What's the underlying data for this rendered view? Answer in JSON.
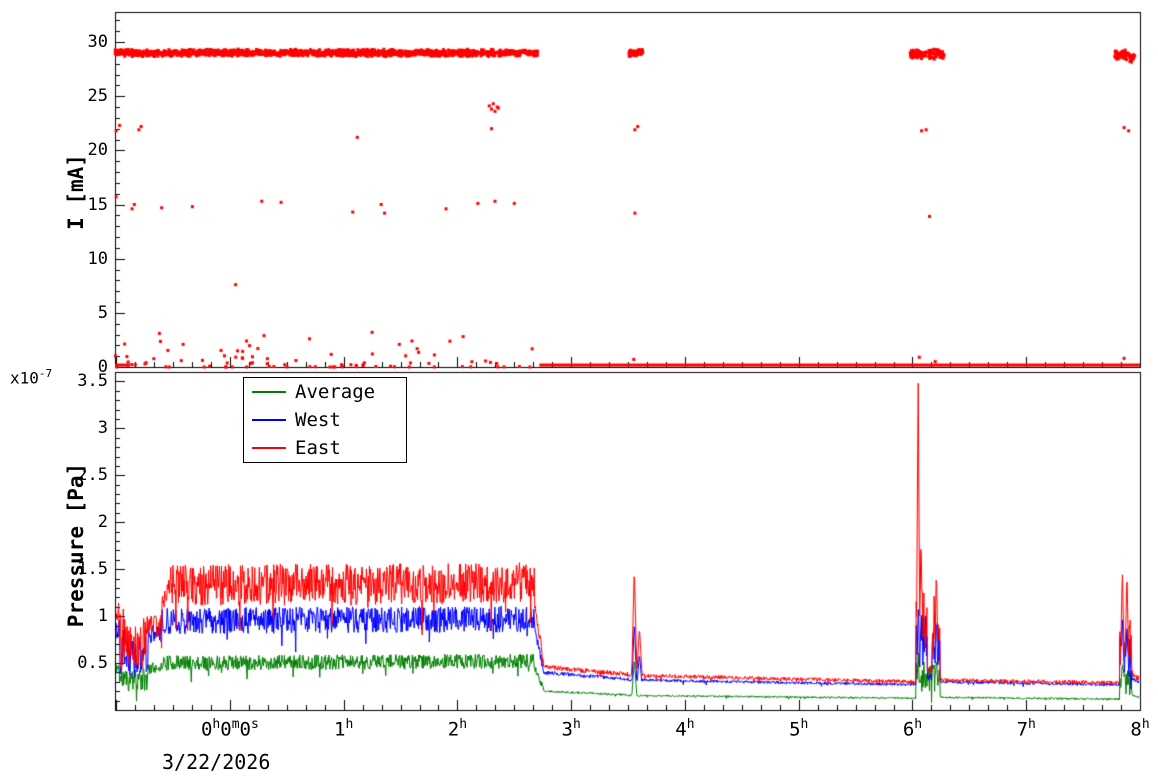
{
  "figure": {
    "background": "#ffffff",
    "frame_color": "#000000"
  },
  "x_axis": {
    "date_label": "3/22/2026",
    "ticks": [
      {
        "v": 0,
        "parts": [
          [
            "0",
            "h"
          ],
          [
            "0",
            "m"
          ],
          [
            "0",
            "s"
          ]
        ]
      },
      {
        "v": 1,
        "parts": [
          [
            "1",
            "h"
          ]
        ]
      },
      {
        "v": 2,
        "parts": [
          [
            "2",
            "h"
          ]
        ]
      },
      {
        "v": 3,
        "parts": [
          [
            "3",
            "h"
          ]
        ]
      },
      {
        "v": 4,
        "parts": [
          [
            "4",
            "h"
          ]
        ]
      },
      {
        "v": 5,
        "parts": [
          [
            "5",
            "h"
          ]
        ]
      },
      {
        "v": 6,
        "parts": [
          [
            "6",
            "h"
          ]
        ]
      },
      {
        "v": 7,
        "parts": [
          [
            "7",
            "h"
          ]
        ]
      },
      {
        "v": 8,
        "parts": [
          [
            "8",
            "h"
          ]
        ]
      }
    ]
  },
  "chart_data": [
    {
      "type": "scatter",
      "title": "",
      "ylabel": "I [mA]",
      "marker_color": "#ff0000",
      "xlim": [
        -1.01,
        8.0
      ],
      "ylim": [
        0,
        32.77
      ],
      "yticks": [
        {
          "v": 0,
          "label": "0"
        },
        {
          "v": 5,
          "label": "5"
        },
        {
          "v": 10,
          "label": "10"
        },
        {
          "v": 15,
          "label": "15"
        },
        {
          "v": 20,
          "label": "20"
        },
        {
          "v": 25,
          "label": "25"
        },
        {
          "v": 30,
          "label": "30"
        }
      ],
      "bands": [
        {
          "x0": -1.01,
          "x1": 2.72,
          "y": 29.0,
          "jitter": 0.35,
          "count": 1500
        },
        {
          "x0": 3.51,
          "x1": 3.63,
          "y": 29.0,
          "jitter": 0.35,
          "count": 50
        },
        {
          "x0": 5.98,
          "x1": 6.12,
          "y": 28.9,
          "jitter": 0.5,
          "count": 65
        },
        {
          "x0": 6.14,
          "x1": 6.28,
          "y": 28.9,
          "jitter": 0.5,
          "count": 55
        },
        {
          "x0": 7.78,
          "x1": 7.88,
          "y": 28.8,
          "jitter": 0.5,
          "count": 45
        },
        {
          "x0": 7.88,
          "x1": 7.96,
          "y": 28.6,
          "jitter": 0.6,
          "count": 25
        }
      ],
      "low_scatter": {
        "x0": -1.01,
        "x1": 2.72,
        "ymax": 2.4,
        "count": 85,
        "power": 3
      },
      "zero_line": {
        "y": 0.18,
        "segments": [
          [
            -1.01,
            -0.88
          ],
          [
            2.72,
            8.0
          ]
        ]
      },
      "strays": [
        [
          -1.0,
          21.8
        ],
        [
          -0.97,
          22.3
        ],
        [
          -0.8,
          21.9
        ],
        [
          -0.78,
          22.2
        ],
        [
          2.3,
          22.0
        ],
        [
          3.56,
          21.9
        ],
        [
          3.585,
          22.2
        ],
        [
          6.08,
          21.8
        ],
        [
          6.12,
          21.9
        ],
        [
          7.86,
          22.1
        ],
        [
          7.9,
          21.8
        ],
        [
          2.28,
          24.1
        ],
        [
          2.3,
          23.8
        ],
        [
          2.315,
          24.3
        ],
        [
          2.33,
          23.6
        ],
        [
          2.35,
          24.0
        ],
        [
          2.36,
          23.9
        ],
        [
          1.12,
          21.2
        ],
        [
          -1.0,
          15.7
        ],
        [
          -0.86,
          14.6
        ],
        [
          -0.84,
          15.0
        ],
        [
          -0.6,
          14.7
        ],
        [
          -0.33,
          14.8
        ],
        [
          0.28,
          15.3
        ],
        [
          0.45,
          15.2
        ],
        [
          1.08,
          14.3
        ],
        [
          1.33,
          15.0
        ],
        [
          1.36,
          14.2
        ],
        [
          1.9,
          14.6
        ],
        [
          2.18,
          15.1
        ],
        [
          2.33,
          15.3
        ],
        [
          2.5,
          15.1
        ],
        [
          3.56,
          14.2
        ],
        [
          6.15,
          13.9
        ],
        [
          0.05,
          7.6
        ],
        [
          -0.62,
          3.1
        ],
        [
          0.3,
          2.9
        ],
        [
          1.25,
          3.2
        ],
        [
          0.7,
          2.6
        ],
        [
          1.6,
          2.4
        ],
        [
          2.05,
          2.8
        ],
        [
          3.55,
          0.7
        ],
        [
          6.06,
          0.9
        ],
        [
          6.2,
          0.5
        ],
        [
          7.86,
          0.8
        ]
      ]
    },
    {
      "type": "line",
      "title": "",
      "ylabel": "Pressure [Pa]",
      "y_multiplier": {
        "base": "x10",
        "exp": "-7"
      },
      "xlim": [
        -1.01,
        8.0
      ],
      "ylim": [
        0,
        3.6
      ],
      "yticks": [
        {
          "v": 0.5,
          "label": "0.5"
        },
        {
          "v": 1,
          "label": "1"
        },
        {
          "v": 1.5,
          "label": "1.5"
        },
        {
          "v": 2,
          "label": "2"
        },
        {
          "v": 2.5,
          "label": "2.5"
        },
        {
          "v": 3,
          "label": "3"
        },
        {
          "v": 3.5,
          "label": "3.5"
        }
      ],
      "legend": {
        "entries": [
          {
            "label": "Average",
            "color": "#008000"
          },
          {
            "label": "West",
            "color": "#0000ff"
          },
          {
            "label": "East",
            "color": "#ff0000"
          }
        ]
      },
      "series": [
        {
          "name": "Average",
          "color": "#008000",
          "segments": [
            [
              -1.01,
              -0.97,
              0.45,
              0.45,
              0.07
            ],
            [
              -0.97,
              -0.93,
              0.33,
              0.33,
              0.15
            ],
            [
              -0.93,
              -0.72,
              0.32,
              0.32,
              0.13
            ],
            [
              -0.72,
              -0.6,
              0.44,
              0.46,
              0.06
            ],
            [
              -0.6,
              2.68,
              0.5,
              0.52,
              0.08
            ],
            [
              2.68,
              2.76,
              0.45,
              0.22,
              0.03
            ],
            [
              2.76,
              3.5,
              0.2,
              0.16,
              0.012
            ],
            [
              3.5,
              6.03,
              0.155,
              0.125,
              0.01
            ],
            [
              6.03,
              6.24,
              0.35,
              0.35,
              0.18
            ],
            [
              6.24,
              7.82,
              0.135,
              0.115,
              0.01
            ],
            [
              7.82,
              7.93,
              0.3,
              0.3,
              0.14
            ],
            [
              7.93,
              8.0,
              0.16,
              0.14,
              0.012
            ]
          ],
          "spikes": [
            [
              3.555,
              0.55,
              0.03
            ],
            [
              6.05,
              0.62,
              0.018
            ],
            [
              6.21,
              0.55,
              0.022
            ],
            [
              7.845,
              0.5,
              0.025
            ]
          ]
        },
        {
          "name": "West",
          "color": "#0000ff",
          "segments": [
            [
              -1.01,
              -0.97,
              0.85,
              0.85,
              0.12
            ],
            [
              -0.97,
              -0.93,
              0.6,
              0.6,
              0.28
            ],
            [
              -0.93,
              -0.72,
              0.55,
              0.55,
              0.22
            ],
            [
              -0.72,
              -0.6,
              0.8,
              0.82,
              0.1
            ],
            [
              -0.6,
              2.68,
              0.95,
              0.97,
              0.14
            ],
            [
              2.68,
              2.76,
              0.85,
              0.42,
              0.05
            ],
            [
              2.76,
              3.5,
              0.4,
              0.33,
              0.02
            ],
            [
              3.5,
              6.03,
              0.32,
              0.27,
              0.015
            ],
            [
              6.03,
              6.13,
              0.72,
              0.72,
              0.3
            ],
            [
              6.13,
              6.17,
              0.35,
              0.35,
              0.04
            ],
            [
              6.17,
              6.24,
              0.68,
              0.68,
              0.28
            ],
            [
              6.24,
              7.82,
              0.3,
              0.27,
              0.015
            ],
            [
              7.82,
              7.93,
              0.58,
              0.58,
              0.24
            ],
            [
              7.93,
              8.0,
              0.33,
              0.3,
              0.02
            ]
          ],
          "spikes": [
            [
              3.555,
              0.95,
              0.03
            ],
            [
              3.6,
              0.6,
              0.04
            ],
            [
              6.05,
              1.1,
              0.018
            ],
            [
              6.075,
              0.95,
              0.02
            ],
            [
              6.21,
              1.0,
              0.022
            ],
            [
              7.845,
              1.0,
              0.025
            ],
            [
              7.885,
              0.92,
              0.025
            ]
          ]
        },
        {
          "name": "East",
          "color": "#ff0000",
          "segments": [
            [
              -1.01,
              -0.97,
              1.05,
              1.05,
              0.18
            ],
            [
              -0.97,
              -0.93,
              0.75,
              0.75,
              0.35
            ],
            [
              -0.93,
              -0.72,
              0.72,
              0.72,
              0.3
            ],
            [
              -0.72,
              -0.6,
              0.88,
              0.9,
              0.12
            ],
            [
              -0.6,
              -0.52,
              1.1,
              1.38,
              0.1
            ],
            [
              -0.52,
              2.68,
              1.33,
              1.35,
              0.22
            ],
            [
              2.68,
              2.76,
              1.1,
              0.5,
              0.06
            ],
            [
              2.76,
              3.5,
              0.46,
              0.38,
              0.025
            ],
            [
              3.5,
              6.03,
              0.37,
              0.3,
              0.02
            ],
            [
              6.03,
              6.13,
              0.95,
              0.95,
              0.35
            ],
            [
              6.13,
              6.17,
              0.42,
              0.42,
              0.05
            ],
            [
              6.17,
              6.24,
              0.9,
              0.9,
              0.32
            ],
            [
              6.24,
              7.82,
              0.32,
              0.29,
              0.02
            ],
            [
              7.82,
              7.93,
              0.7,
              0.7,
              0.28
            ],
            [
              7.93,
              8.0,
              0.38,
              0.33,
              0.03
            ]
          ],
          "spikes": [
            [
              3.555,
              1.52,
              0.03
            ],
            [
              3.6,
              0.88,
              0.04
            ],
            [
              6.05,
              3.58,
              0.018
            ],
            [
              6.075,
              1.9,
              0.02
            ],
            [
              6.21,
              1.52,
              0.022
            ],
            [
              7.845,
              1.5,
              0.025
            ],
            [
              7.885,
              1.45,
              0.025
            ]
          ]
        }
      ]
    }
  ]
}
